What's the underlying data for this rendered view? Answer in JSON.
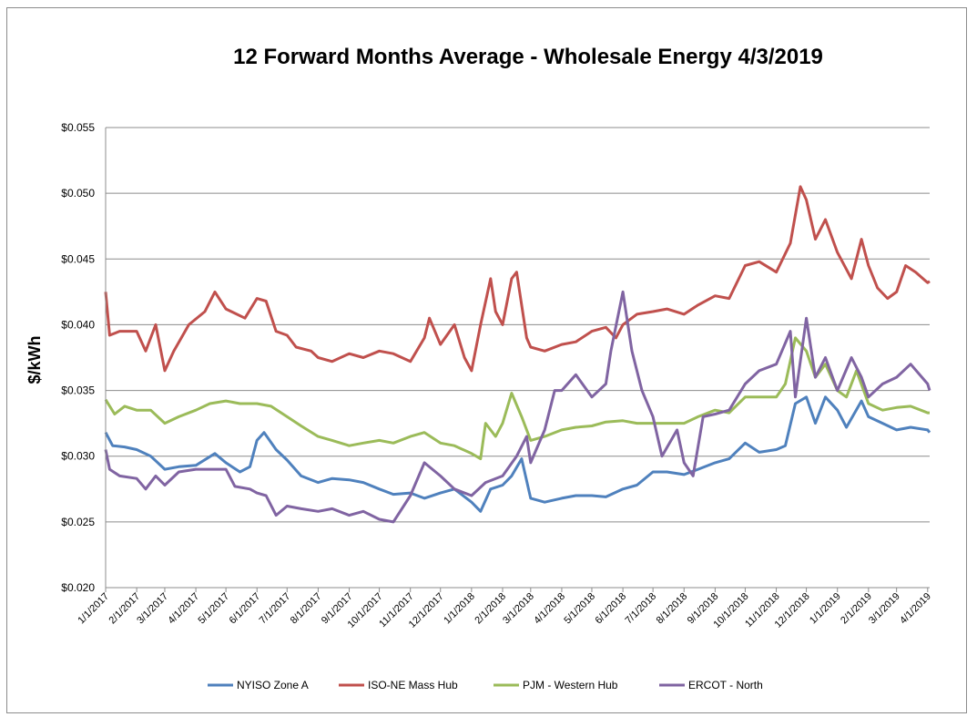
{
  "chart_data": {
    "type": "line",
    "title": "12 Forward Months Average - Wholesale Energy 4/3/2019",
    "ylabel": "$/kWh",
    "xlabel": "",
    "ylim": [
      0.02,
      0.055
    ],
    "yticks": [
      "$0.020",
      "$0.025",
      "$0.030",
      "$0.035",
      "$0.040",
      "$0.045",
      "$0.050",
      "$0.055"
    ],
    "xticks": [
      "1/1/2017",
      "2/1/2017",
      "3/1/2017",
      "4/1/2017",
      "5/1/2017",
      "6/1/2017",
      "7/1/2017",
      "8/1/2017",
      "9/1/2017",
      "10/1/2017",
      "11/1/2017",
      "12/1/2017",
      "1/1/2018",
      "2/1/2018",
      "3/1/2018",
      "4/1/2018",
      "5/1/2018",
      "6/1/2018",
      "7/1/2018",
      "8/1/2018",
      "9/1/2018",
      "10/1/2018",
      "11/1/2018",
      "12/1/2018",
      "1/1/2019",
      "2/1/2019",
      "3/1/2019",
      "4/1/2019"
    ],
    "x_range": [
      "1/1/2017",
      "4/3/2019"
    ],
    "grid": "horizontal",
    "legend_position": "bottom",
    "series": [
      {
        "name": "NYISO Zone A",
        "color": "#4f81bd",
        "points": [
          [
            "1/1/2017",
            0.0318
          ],
          [
            "1/8/2017",
            0.0308
          ],
          [
            "1/20/2017",
            0.0307
          ],
          [
            "2/1/2017",
            0.0305
          ],
          [
            "2/15/2017",
            0.03
          ],
          [
            "3/1/2017",
            0.029
          ],
          [
            "3/15/2017",
            0.0292
          ],
          [
            "4/1/2017",
            0.0293
          ],
          [
            "4/20/2017",
            0.0302
          ],
          [
            "5/1/2017",
            0.0295
          ],
          [
            "5/15/2017",
            0.0288
          ],
          [
            "5/25/2017",
            0.0292
          ],
          [
            "6/1/2017",
            0.0312
          ],
          [
            "6/8/2017",
            0.0318
          ],
          [
            "6/20/2017",
            0.0305
          ],
          [
            "7/1/2017",
            0.0297
          ],
          [
            "7/15/2017",
            0.0285
          ],
          [
            "8/1/2017",
            0.028
          ],
          [
            "8/15/2017",
            0.0283
          ],
          [
            "9/1/2017",
            0.0282
          ],
          [
            "9/15/2017",
            0.028
          ],
          [
            "10/1/2017",
            0.0275
          ],
          [
            "10/15/2017",
            0.0271
          ],
          [
            "11/1/2017",
            0.0272
          ],
          [
            "11/15/2017",
            0.0268
          ],
          [
            "12/1/2017",
            0.0272
          ],
          [
            "12/15/2017",
            0.0275
          ],
          [
            "1/1/2018",
            0.0265
          ],
          [
            "1/10/2018",
            0.0258
          ],
          [
            "1/20/2018",
            0.0275
          ],
          [
            "2/1/2018",
            0.0278
          ],
          [
            "2/10/2018",
            0.0285
          ],
          [
            "2/20/2018",
            0.0298
          ],
          [
            "3/1/2018",
            0.0268
          ],
          [
            "3/15/2018",
            0.0265
          ],
          [
            "4/1/2018",
            0.0268
          ],
          [
            "4/15/2018",
            0.027
          ],
          [
            "5/1/2018",
            0.027
          ],
          [
            "5/15/2018",
            0.0269
          ],
          [
            "6/1/2018",
            0.0275
          ],
          [
            "6/15/2018",
            0.0278
          ],
          [
            "7/1/2018",
            0.0288
          ],
          [
            "7/15/2018",
            0.0288
          ],
          [
            "8/1/2018",
            0.0286
          ],
          [
            "8/15/2018",
            0.029
          ],
          [
            "9/1/2018",
            0.0295
          ],
          [
            "9/15/2018",
            0.0298
          ],
          [
            "10/1/2018",
            0.031
          ],
          [
            "10/15/2018",
            0.0303
          ],
          [
            "11/1/2018",
            0.0305
          ],
          [
            "11/10/2018",
            0.0308
          ],
          [
            "11/20/2018",
            0.034
          ],
          [
            "12/1/2018",
            0.0345
          ],
          [
            "12/10/2018",
            0.0325
          ],
          [
            "12/20/2018",
            0.0345
          ],
          [
            "1/1/2019",
            0.0335
          ],
          [
            "1/10/2019",
            0.0322
          ],
          [
            "1/25/2019",
            0.0342
          ],
          [
            "2/1/2019",
            0.033
          ],
          [
            "2/15/2019",
            0.0325
          ],
          [
            "3/1/2019",
            0.032
          ],
          [
            "3/15/2019",
            0.0322
          ],
          [
            "4/1/2019",
            0.032
          ],
          [
            "4/3/2019",
            0.0318
          ]
        ]
      },
      {
        "name": "ISO-NE Mass Hub",
        "color": "#c0504d",
        "points": [
          [
            "1/1/2017",
            0.0425
          ],
          [
            "1/5/2017",
            0.0392
          ],
          [
            "1/15/2017",
            0.0395
          ],
          [
            "2/1/2017",
            0.0395
          ],
          [
            "2/10/2017",
            0.038
          ],
          [
            "2/20/2017",
            0.04
          ],
          [
            "3/1/2017",
            0.0365
          ],
          [
            "3/10/2017",
            0.038
          ],
          [
            "3/25/2017",
            0.04
          ],
          [
            "4/10/2017",
            0.041
          ],
          [
            "4/20/2017",
            0.0425
          ],
          [
            "5/1/2017",
            0.0412
          ],
          [
            "5/20/2017",
            0.0405
          ],
          [
            "6/1/2017",
            0.042
          ],
          [
            "6/10/2017",
            0.0418
          ],
          [
            "6/20/2017",
            0.0395
          ],
          [
            "7/1/2017",
            0.0392
          ],
          [
            "7/10/2017",
            0.0383
          ],
          [
            "7/25/2017",
            0.038
          ],
          [
            "8/1/2017",
            0.0375
          ],
          [
            "8/15/2017",
            0.0372
          ],
          [
            "9/1/2017",
            0.0378
          ],
          [
            "9/15/2017",
            0.0375
          ],
          [
            "10/1/2017",
            0.038
          ],
          [
            "10/15/2017",
            0.0378
          ],
          [
            "11/1/2017",
            0.0372
          ],
          [
            "11/15/2017",
            0.039
          ],
          [
            "11/20/2017",
            0.0405
          ],
          [
            "12/1/2017",
            0.0385
          ],
          [
            "12/15/2017",
            0.04
          ],
          [
            "12/25/2017",
            0.0375
          ],
          [
            "1/1/2018",
            0.0365
          ],
          [
            "1/10/2018",
            0.04
          ],
          [
            "1/20/2018",
            0.0435
          ],
          [
            "1/25/2018",
            0.041
          ],
          [
            "2/1/2018",
            0.04
          ],
          [
            "2/10/2018",
            0.0435
          ],
          [
            "2/15/2018",
            0.044
          ],
          [
            "2/25/2018",
            0.039
          ],
          [
            "3/1/2018",
            0.0383
          ],
          [
            "3/15/2018",
            0.038
          ],
          [
            "4/1/2018",
            0.0385
          ],
          [
            "4/15/2018",
            0.0387
          ],
          [
            "5/1/2018",
            0.0395
          ],
          [
            "5/15/2018",
            0.0398
          ],
          [
            "5/25/2018",
            0.039
          ],
          [
            "6/1/2018",
            0.04
          ],
          [
            "6/15/2018",
            0.0408
          ],
          [
            "7/1/2018",
            0.041
          ],
          [
            "7/15/2018",
            0.0412
          ],
          [
            "8/1/2018",
            0.0408
          ],
          [
            "8/15/2018",
            0.0415
          ],
          [
            "9/1/2018",
            0.0422
          ],
          [
            "9/15/2018",
            0.042
          ],
          [
            "10/1/2018",
            0.0445
          ],
          [
            "10/15/2018",
            0.0448
          ],
          [
            "11/1/2018",
            0.044
          ],
          [
            "11/15/2018",
            0.0462
          ],
          [
            "11/25/2018",
            0.0505
          ],
          [
            "12/1/2018",
            0.0495
          ],
          [
            "12/10/2018",
            0.0465
          ],
          [
            "12/20/2018",
            0.048
          ],
          [
            "1/1/2019",
            0.0455
          ],
          [
            "1/15/2019",
            0.0435
          ],
          [
            "1/25/2019",
            0.0465
          ],
          [
            "2/1/2019",
            0.0445
          ],
          [
            "2/10/2019",
            0.0428
          ],
          [
            "2/20/2019",
            0.042
          ],
          [
            "3/1/2019",
            0.0425
          ],
          [
            "3/10/2019",
            0.0445
          ],
          [
            "3/20/2019",
            0.044
          ],
          [
            "4/1/2019",
            0.0432
          ],
          [
            "4/3/2019",
            0.0433
          ]
        ]
      },
      {
        "name": "PJM - Western Hub",
        "color": "#9bbb59",
        "points": [
          [
            "1/1/2017",
            0.0343
          ],
          [
            "1/10/2017",
            0.0332
          ],
          [
            "1/20/2017",
            0.0338
          ],
          [
            "2/1/2017",
            0.0335
          ],
          [
            "2/15/2017",
            0.0335
          ],
          [
            "3/1/2017",
            0.0325
          ],
          [
            "3/15/2017",
            0.033
          ],
          [
            "4/1/2017",
            0.0335
          ],
          [
            "4/15/2017",
            0.034
          ],
          [
            "5/1/2017",
            0.0342
          ],
          [
            "5/15/2017",
            0.034
          ],
          [
            "6/1/2017",
            0.034
          ],
          [
            "6/15/2017",
            0.0338
          ],
          [
            "7/1/2017",
            0.033
          ],
          [
            "7/15/2017",
            0.0323
          ],
          [
            "8/1/2017",
            0.0315
          ],
          [
            "8/15/2017",
            0.0312
          ],
          [
            "9/1/2017",
            0.0308
          ],
          [
            "9/15/2017",
            0.031
          ],
          [
            "10/1/2017",
            0.0312
          ],
          [
            "10/15/2017",
            0.031
          ],
          [
            "11/1/2017",
            0.0315
          ],
          [
            "11/15/2017",
            0.0318
          ],
          [
            "12/1/2017",
            0.031
          ],
          [
            "12/15/2017",
            0.0308
          ],
          [
            "1/1/2018",
            0.0302
          ],
          [
            "1/10/2018",
            0.0298
          ],
          [
            "1/15/2018",
            0.0325
          ],
          [
            "1/25/2018",
            0.0315
          ],
          [
            "2/1/2018",
            0.0325
          ],
          [
            "2/10/2018",
            0.0348
          ],
          [
            "2/20/2018",
            0.033
          ],
          [
            "3/1/2018",
            0.0312
          ],
          [
            "3/15/2018",
            0.0315
          ],
          [
            "4/1/2018",
            0.032
          ],
          [
            "4/15/2018",
            0.0322
          ],
          [
            "5/1/2018",
            0.0323
          ],
          [
            "5/15/2018",
            0.0326
          ],
          [
            "6/1/2018",
            0.0327
          ],
          [
            "6/15/2018",
            0.0325
          ],
          [
            "7/1/2018",
            0.0325
          ],
          [
            "7/15/2018",
            0.0325
          ],
          [
            "8/1/2018",
            0.0325
          ],
          [
            "8/15/2018",
            0.033
          ],
          [
            "9/1/2018",
            0.0335
          ],
          [
            "9/15/2018",
            0.0333
          ],
          [
            "10/1/2018",
            0.0345
          ],
          [
            "10/15/2018",
            0.0345
          ],
          [
            "11/1/2018",
            0.0345
          ],
          [
            "11/10/2018",
            0.0355
          ],
          [
            "11/20/2018",
            0.039
          ],
          [
            "12/1/2018",
            0.038
          ],
          [
            "12/10/2018",
            0.036
          ],
          [
            "12/20/2018",
            0.037
          ],
          [
            "1/1/2019",
            0.035
          ],
          [
            "1/10/2019",
            0.0345
          ],
          [
            "1/20/2019",
            0.0365
          ],
          [
            "2/1/2019",
            0.034
          ],
          [
            "2/15/2019",
            0.0335
          ],
          [
            "3/1/2019",
            0.0337
          ],
          [
            "3/15/2019",
            0.0338
          ],
          [
            "4/1/2019",
            0.0333
          ],
          [
            "4/3/2019",
            0.0333
          ]
        ]
      },
      {
        "name": "ERCOT - North",
        "color": "#8064a2",
        "points": [
          [
            "1/1/2017",
            0.0305
          ],
          [
            "1/5/2017",
            0.029
          ],
          [
            "1/15/2017",
            0.0285
          ],
          [
            "2/1/2017",
            0.0283
          ],
          [
            "2/10/2017",
            0.0275
          ],
          [
            "2/20/2017",
            0.0285
          ],
          [
            "3/1/2017",
            0.0278
          ],
          [
            "3/15/2017",
            0.0288
          ],
          [
            "4/1/2017",
            0.029
          ],
          [
            "4/15/2017",
            0.029
          ],
          [
            "5/1/2017",
            0.029
          ],
          [
            "5/10/2017",
            0.0277
          ],
          [
            "5/25/2017",
            0.0275
          ],
          [
            "6/1/2017",
            0.0272
          ],
          [
            "6/10/2017",
            0.027
          ],
          [
            "6/20/2017",
            0.0255
          ],
          [
            "7/1/2017",
            0.0262
          ],
          [
            "7/15/2017",
            0.026
          ],
          [
            "8/1/2017",
            0.0258
          ],
          [
            "8/15/2017",
            0.026
          ],
          [
            "9/1/2017",
            0.0255
          ],
          [
            "9/15/2017",
            0.0258
          ],
          [
            "10/1/2017",
            0.0252
          ],
          [
            "10/15/2017",
            0.025
          ],
          [
            "11/1/2017",
            0.027
          ],
          [
            "11/15/2017",
            0.0295
          ],
          [
            "12/1/2017",
            0.0285
          ],
          [
            "12/15/2017",
            0.0275
          ],
          [
            "1/1/2018",
            0.027
          ],
          [
            "1/15/2018",
            0.028
          ],
          [
            "2/1/2018",
            0.0285
          ],
          [
            "2/15/2018",
            0.03
          ],
          [
            "2/25/2018",
            0.0315
          ],
          [
            "3/1/2018",
            0.0295
          ],
          [
            "3/15/2018",
            0.032
          ],
          [
            "3/25/2018",
            0.035
          ],
          [
            "4/1/2018",
            0.035
          ],
          [
            "4/15/2018",
            0.0362
          ],
          [
            "5/1/2018",
            0.0345
          ],
          [
            "5/15/2018",
            0.0355
          ],
          [
            "5/20/2018",
            0.038
          ],
          [
            "6/1/2018",
            0.0425
          ],
          [
            "6/10/2018",
            0.038
          ],
          [
            "6/20/2018",
            0.035
          ],
          [
            "7/1/2018",
            0.033
          ],
          [
            "7/10/2018",
            0.03
          ],
          [
            "7/25/2018",
            0.032
          ],
          [
            "8/1/2018",
            0.0295
          ],
          [
            "8/10/2018",
            0.0285
          ],
          [
            "8/20/2018",
            0.033
          ],
          [
            "9/1/2018",
            0.0332
          ],
          [
            "9/15/2018",
            0.0335
          ],
          [
            "10/1/2018",
            0.0355
          ],
          [
            "10/15/2018",
            0.0365
          ],
          [
            "11/1/2018",
            0.037
          ],
          [
            "11/15/2018",
            0.0395
          ],
          [
            "11/20/2018",
            0.0345
          ],
          [
            "12/1/2018",
            0.0405
          ],
          [
            "12/10/2018",
            0.036
          ],
          [
            "12/20/2018",
            0.0375
          ],
          [
            "1/1/2019",
            0.035
          ],
          [
            "1/15/2019",
            0.0375
          ],
          [
            "1/25/2019",
            0.036
          ],
          [
            "2/1/2019",
            0.0345
          ],
          [
            "2/15/2019",
            0.0355
          ],
          [
            "3/1/2019",
            0.036
          ],
          [
            "3/15/2019",
            0.037
          ],
          [
            "4/1/2019",
            0.0355
          ],
          [
            "4/3/2019",
            0.035
          ]
        ]
      }
    ]
  }
}
